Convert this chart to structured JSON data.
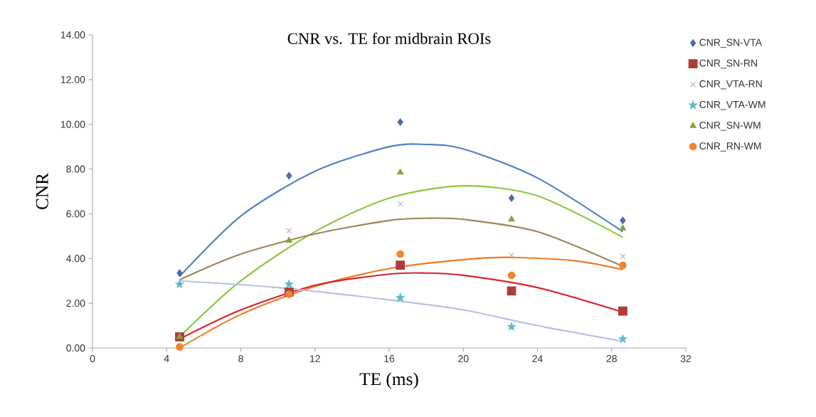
{
  "chart_data": {
    "type": "scatter",
    "title": "CNR vs. TE for midbrain ROIs",
    "xlabel": "TE (ms)",
    "ylabel": "CNR",
    "x": [
      4.7,
      10.6,
      16.6,
      22.6,
      28.6
    ],
    "xlim": [
      0,
      32
    ],
    "xticks": [
      0,
      4,
      8,
      12,
      16,
      20,
      24,
      28,
      32
    ],
    "ylim": [
      0,
      14
    ],
    "yticks": [
      {
        "value": 0,
        "label": "0.00"
      },
      {
        "value": 2,
        "label": "2.00"
      },
      {
        "value": 4,
        "label": "4.00"
      },
      {
        "value": 6,
        "label": "6.00"
      },
      {
        "value": 8,
        "label": "8.00"
      },
      {
        "value": 10,
        "label": "10.00"
      },
      {
        "value": 12,
        "label": "12.00"
      },
      {
        "value": 14,
        "label": "14.00"
      }
    ],
    "grid": false,
    "legend": "right",
    "line_style": "solid",
    "series": [
      {
        "type": "line",
        "color": "#4f7fc8",
        "x": [
          4.7,
          8,
          12,
          16,
          18,
          20,
          24,
          28.6
        ],
        "values": [
          3.2,
          5.9,
          7.9,
          9.0,
          9.1,
          8.9,
          7.6,
          5.2
        ]
      },
      {
        "type": "line",
        "color": "#8dc63f",
        "x": [
          4.7,
          8,
          12,
          16,
          20,
          24,
          28.6
        ],
        "values": [
          0.5,
          3.0,
          5.2,
          6.7,
          7.25,
          6.8,
          4.95
        ]
      },
      {
        "type": "line",
        "color": "#9c8654",
        "x": [
          4.7,
          8,
          12,
          16,
          18,
          20,
          24,
          28.6
        ],
        "values": [
          3.05,
          4.2,
          5.1,
          5.7,
          5.8,
          5.75,
          5.2,
          3.65
        ]
      },
      {
        "type": "line",
        "color": "#f07a22",
        "x": [
          4.7,
          8,
          12,
          16,
          20,
          22.6,
          26,
          28.6
        ],
        "values": [
          0.0,
          1.5,
          2.75,
          3.55,
          3.95,
          4.05,
          3.9,
          3.5
        ]
      },
      {
        "type": "line",
        "color": "#d9232a",
        "x": [
          4.7,
          8,
          12,
          16,
          18,
          20,
          24,
          28.6
        ],
        "values": [
          0.4,
          1.7,
          2.8,
          3.3,
          3.35,
          3.25,
          2.7,
          1.6
        ]
      },
      {
        "type": "line",
        "color": "#b7c1e0",
        "x": [
          4.7,
          10,
          16,
          20,
          24,
          28.6
        ],
        "values": [
          3.0,
          2.7,
          2.15,
          1.7,
          1.0,
          0.3
        ]
      },
      {
        "name": "CNR_SN-VTA",
        "marker": "diamond",
        "color": "#4a6aab",
        "values": [
          3.35,
          7.7,
          10.1,
          6.7,
          5.7
        ]
      },
      {
        "name": "CNR_SN-RN",
        "marker": "square",
        "color": "#b03c3a",
        "values": [
          0.5,
          2.5,
          3.7,
          2.55,
          1.65
        ]
      },
      {
        "name": "CNR_VTA-RN",
        "marker": "cross",
        "color": "#c7a2d0",
        "values": [
          null,
          5.25,
          6.45,
          4.15,
          4.1
        ]
      },
      {
        "name": "CNR_VTA-WM",
        "marker": "star",
        "color": "#5bbcc8",
        "values": [
          2.85,
          2.85,
          2.25,
          0.95,
          0.4
        ]
      },
      {
        "name": "CNR_SN-WM",
        "marker": "triangle",
        "color": "#7fa63a",
        "values": [
          0.5,
          4.8,
          7.85,
          5.75,
          5.35
        ]
      },
      {
        "name": "CNR_RN-WM",
        "marker": "circle",
        "color": "#f0862e",
        "values": [
          0.05,
          2.4,
          4.2,
          3.25,
          3.7
        ]
      }
    ]
  }
}
